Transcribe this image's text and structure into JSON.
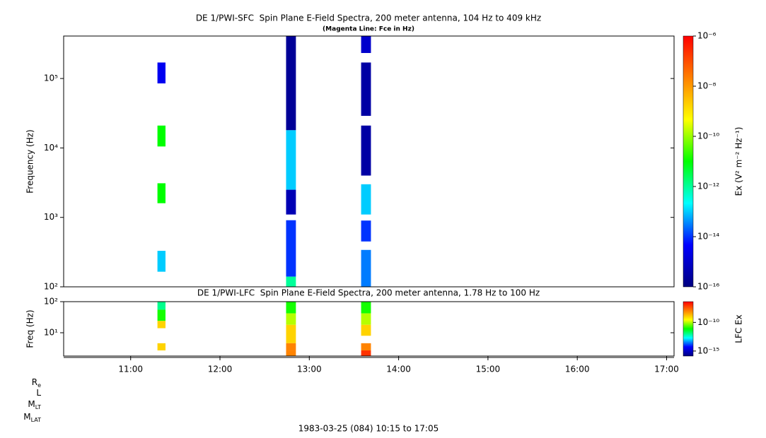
{
  "chart_data": [
    {
      "type": "spectrogram",
      "title": "DE 1/PWI-SFC  Spin Plane E-Field Spectra, 200 meter antenna, 104 Hz to 409 kHz",
      "subtitle": "(Magenta Line: Fce in Hz)",
      "ylabel": "Frequency (Hz)",
      "log_y": true,
      "xlim": [
        10.25,
        17.0833
      ],
      "ylim": [
        100,
        409000
      ],
      "yticks": [
        {
          "value": 100,
          "label": "10²"
        },
        {
          "value": 1000,
          "label": "10³"
        },
        {
          "value": 10000,
          "label": "10⁴"
        },
        {
          "value": 100000,
          "label": "10⁵"
        }
      ],
      "clabel": "Ex (V² m⁻² Hz⁻¹)",
      "clim": [
        1e-16,
        1e-06
      ],
      "cticks": [
        {
          "value": 1e-06,
          "label": "10⁻⁶"
        },
        {
          "value": 1e-08,
          "label": "10⁻⁸"
        },
        {
          "value": 1e-10,
          "label": "10⁻¹⁰"
        },
        {
          "value": 1e-12,
          "label": "10⁻¹²"
        },
        {
          "value": 1e-14,
          "label": "10⁻¹⁴"
        },
        {
          "value": 1e-16,
          "label": "10⁻¹⁶"
        }
      ],
      "colormap": [
        "#000080",
        "#0000ff",
        "#00ffff",
        "#00ff00",
        "#ffff00",
        "#ff8000",
        "#ff0000"
      ],
      "columns": [
        {
          "t": [
            11.3,
            11.39
          ],
          "bands": [
            {
              "f": [
                85000,
                170000
              ],
              "value": 3e-15
            },
            {
              "f": [
                10500,
                21000
              ],
              "value": 1e-11
            },
            {
              "f": [
                1600,
                3100
              ],
              "value": 1e-11
            },
            {
              "f": [
                165,
                330
              ],
              "value": 1e-13
            }
          ]
        },
        {
          "t": [
            12.74,
            12.85
          ],
          "bands": [
            {
              "f": [
                18000,
                409000
              ],
              "value": 2e-16
            },
            {
              "f": [
                2500,
                18000
              ],
              "value": 1e-13
            },
            {
              "f": [
                1100,
                2500
              ],
              "value": 5e-16
            },
            {
              "f": [
                140,
                910
              ],
              "value": 1e-14
            },
            {
              "f": [
                100,
                140
              ],
              "value": 1e-12
            }
          ]
        },
        {
          "t": [
            13.58,
            13.69
          ],
          "bands": [
            {
              "f": [
                233000,
                409000
              ],
              "value": 1e-15
            },
            {
              "f": [
                29000,
                170000
              ],
              "value": 3e-16
            },
            {
              "f": [
                4000,
                21000
              ],
              "value": 3e-16
            },
            {
              "f": [
                1100,
                3000
              ],
              "value": 1e-13
            },
            {
              "f": [
                450,
                900
              ],
              "value": 1e-14
            },
            {
              "f": [
                100,
                340
              ],
              "value": 3e-14
            }
          ]
        }
      ]
    },
    {
      "type": "spectrogram",
      "title": "DE 1/PWI-LFC  Spin Plane E-Field Spectra, 200 meter antenna, 1.78 Hz to 100 Hz",
      "ylabel": "Freq (Hz)",
      "log_y": true,
      "xlim": [
        10.25,
        17.0833
      ],
      "xticks": [
        {
          "value": 11,
          "label": "11:00"
        },
        {
          "value": 12,
          "label": "12:00"
        },
        {
          "value": 13,
          "label": "13:00"
        },
        {
          "value": 14,
          "label": "14:00"
        },
        {
          "value": 15,
          "label": "15:00"
        },
        {
          "value": 16,
          "label": "16:00"
        },
        {
          "value": 17,
          "label": "17:00"
        }
      ],
      "ylim": [
        1.78,
        100
      ],
      "yticks": [
        {
          "value": 10,
          "label": "10¹"
        },
        {
          "value": 100,
          "label": "10²"
        }
      ],
      "clabel": "LFC Ex",
      "clim": [
        1.33e-16,
        4.2e-07
      ],
      "cticks": [
        {
          "value": 1e-10,
          "label": "10⁻¹⁰"
        },
        {
          "value": 1e-15,
          "label": "10⁻¹⁵"
        }
      ],
      "colormap": [
        "#000080",
        "#0000ff",
        "#00ffff",
        "#00ff00",
        "#ffff00",
        "#ff8000",
        "#ff0000"
      ],
      "columns": [
        {
          "t": [
            11.3,
            11.39
          ],
          "bands": [
            {
              "f": [
                55,
                100
              ],
              "value": 1e-12
            },
            {
              "f": [
                24,
                55
              ],
              "value": 1e-11
            },
            {
              "f": [
                14,
                24
              ],
              "value": 1e-09
            },
            {
              "f": [
                2.7,
                4.6
              ],
              "value": 1e-09
            }
          ]
        },
        {
          "t": [
            12.74,
            12.85
          ],
          "bands": [
            {
              "f": [
                42,
                100
              ],
              "value": 1e-11
            },
            {
              "f": [
                18,
                42
              ],
              "value": 1e-10
            },
            {
              "f": [
                4.6,
                18
              ],
              "value": 1e-09
            },
            {
              "f": [
                2.7,
                4.6
              ],
              "value": 1e-08
            },
            {
              "f": [
                1.78,
                2.7
              ],
              "value": 1e-08
            }
          ]
        },
        {
          "t": [
            13.58,
            13.69
          ],
          "bands": [
            {
              "f": [
                42,
                100
              ],
              "value": 1e-11
            },
            {
              "f": [
                18,
                42
              ],
              "value": 1e-10
            },
            {
              "f": [
                8,
                18
              ],
              "value": 1e-09
            },
            {
              "f": [
                2.7,
                4.6
              ],
              "value": 1e-08
            },
            {
              "f": [
                1.78,
                2.7
              ],
              "value": 1e-07
            }
          ]
        }
      ]
    }
  ],
  "ephemeris_labels": [
    {
      "text": "R",
      "sub": "e"
    },
    {
      "text": "L"
    },
    {
      "text": "M",
      "sub": "LT"
    },
    {
      "text": "M",
      "sub": "LAT"
    }
  ],
  "footer": "1983-03-25 (084) 10:15 to 17:05"
}
